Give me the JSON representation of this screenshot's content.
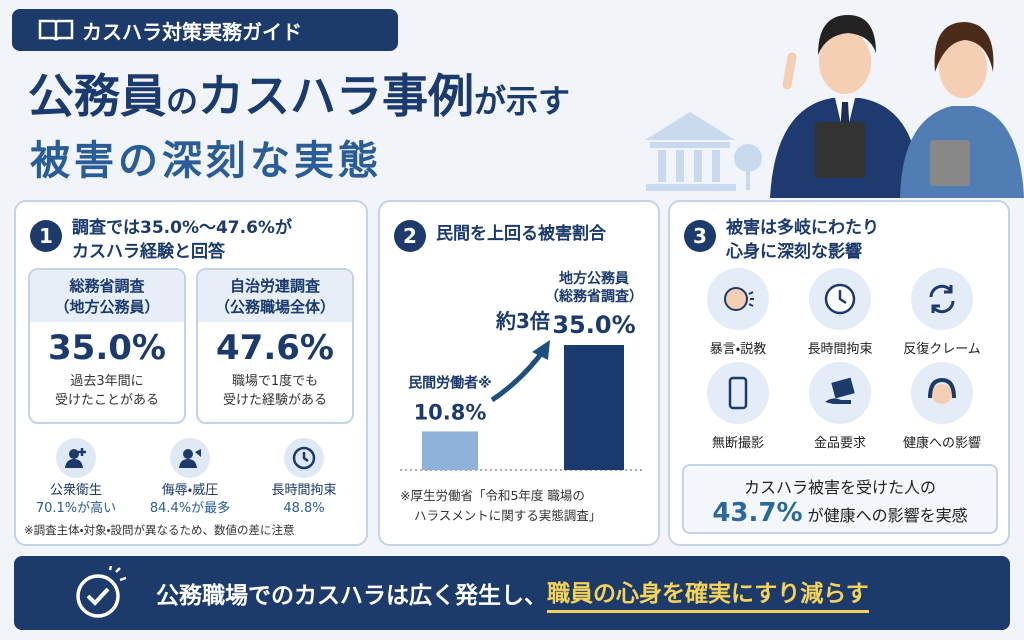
{
  "header": {
    "badge": "カスハラ対策実務ガイド",
    "title_line1": [
      "公務員",
      "の",
      "カスハラ事例",
      "が示す"
    ],
    "title_line2": "被害の深刻な実態"
  },
  "panel1": {
    "number": "1",
    "heading": [
      "調査では35.0%～47.6%が",
      "カスハラ経験と回答"
    ],
    "cards": [
      {
        "title": "総務省調査",
        "subtitle": "（地方公務員）",
        "value": "35.0%",
        "note": [
          "過去3年間に",
          "受けたことがある"
        ]
      },
      {
        "title": "自治労連調査",
        "subtitle": "（公務職場全体）",
        "value": "47.6%",
        "note": [
          "職場で1度でも",
          "受けた経験がある"
        ]
      }
    ],
    "stats": [
      {
        "label": "公衆衛生",
        "value": "70.1%が高い"
      },
      {
        "label": "侮辱・威圧",
        "value": "84.4%が最多"
      },
      {
        "label": "長時間拘束",
        "value": "48.8%"
      }
    ],
    "footnote": "※調査主体・対象・設問が異なるため、数値の差に注意"
  },
  "panel2": {
    "number": "2",
    "heading": "民間を上回る被害割合",
    "chart": {
      "type": "bar",
      "categories": [
        [
          "民間労働者※"
        ],
        [
          "地方公務員",
          "（総務省調査）"
        ]
      ],
      "values": [
        10.8,
        35.0
      ],
      "value_labels": [
        "10.8%",
        "35.0%"
      ],
      "colors": [
        "#8fb1da",
        "#1b3a6d"
      ]
    },
    "annotation": "約3倍",
    "source": [
      "※厚生労働省「令和5年度 職場の",
      "ハラスメントに関する実態調査」"
    ]
  },
  "panel3": {
    "number": "3",
    "heading": [
      "被害は多岐にわたり",
      "心身に深刻な影響"
    ],
    "items": [
      "暴言・説教",
      "長時間拘束",
      "反復クレーム",
      "無断撮影",
      "金品要求",
      "健康への影響"
    ],
    "summary": {
      "line1": "カスハラ被害を受けた人の",
      "value": "43.7%",
      "rest": "が健康への影響を実感"
    }
  },
  "footer": {
    "text": "公務職場でのカスハラは広く発生し、",
    "highlight": "職員の心身を確実にすり減らす"
  }
}
